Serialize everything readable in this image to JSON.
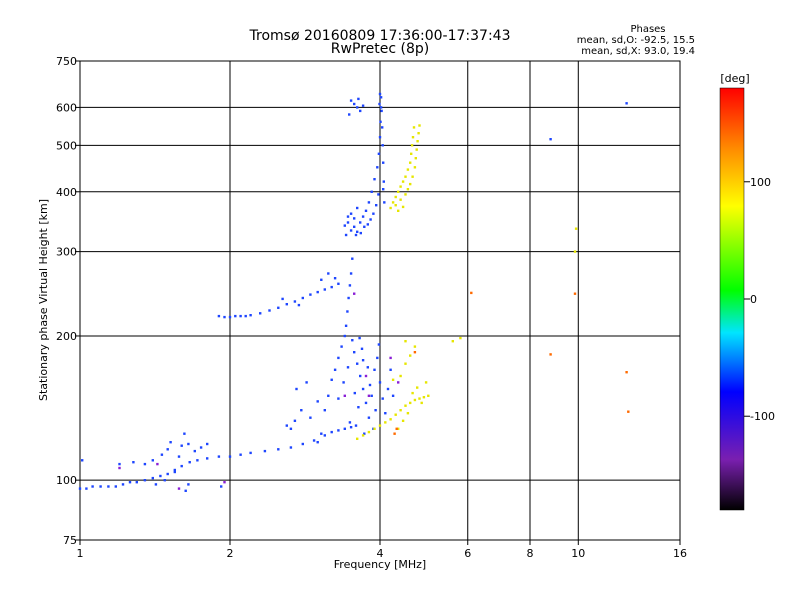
{
  "chart_data": {
    "type": "scatter",
    "title": "Tromsø 20160809 17:36:00-17:37:43",
    "subtitle": "RwPretec (8p)",
    "xlabel": "Frequency [MHz]",
    "ylabel": "Stationary phase Virtual Height [km]",
    "xscale": "log",
    "yscale": "log",
    "xlim": [
      1,
      16
    ],
    "ylim": [
      75,
      750
    ],
    "xticks": [
      1,
      2,
      4,
      6,
      8,
      10,
      16
    ],
    "xtick_labels": [
      "1",
      "2",
      "4",
      "6",
      "8",
      "10",
      "16"
    ],
    "yticks": [
      75,
      100,
      200,
      300,
      400,
      500,
      600,
      750
    ],
    "ytick_labels": [
      "75",
      "100",
      "200",
      "300",
      "400",
      "500",
      "600",
      "750"
    ],
    "grid": true,
    "phase_info": {
      "title": "Phases",
      "line_o": "mean, sd,O: -92.5, 15.5",
      "line_x": "mean, sd,X:  93.0, 19.4"
    },
    "colorbar": {
      "label": "[deg]",
      "range": [
        -180,
        180
      ],
      "ticks": [
        100,
        0,
        -100
      ],
      "tick_labels": [
        "100",
        "0",
        "-100"
      ]
    },
    "series": [
      {
        "phase": "O",
        "color": "#1e46ff",
        "points": [
          [
            1.0,
            96
          ],
          [
            1.03,
            96
          ],
          [
            1.06,
            97
          ],
          [
            1.1,
            97
          ],
          [
            1.14,
            97
          ],
          [
            1.18,
            97
          ],
          [
            1.22,
            98
          ],
          [
            1.26,
            99
          ],
          [
            1.3,
            99
          ],
          [
            1.35,
            100
          ],
          [
            1.4,
            101
          ],
          [
            1.45,
            102
          ],
          [
            1.5,
            103
          ],
          [
            1.55,
            105
          ],
          [
            1.6,
            107
          ],
          [
            1.66,
            109
          ],
          [
            1.72,
            110
          ],
          [
            1.8,
            111
          ],
          [
            1.9,
            112
          ],
          [
            2.0,
            112
          ],
          [
            2.1,
            113
          ],
          [
            2.2,
            114
          ],
          [
            2.35,
            115
          ],
          [
            2.5,
            116
          ],
          [
            2.65,
            117
          ],
          [
            2.8,
            119
          ],
          [
            2.95,
            121
          ],
          [
            3.1,
            124
          ],
          [
            3.2,
            126
          ],
          [
            3.3,
            127
          ],
          [
            3.4,
            128
          ],
          [
            3.5,
            129
          ],
          [
            1.01,
            110
          ],
          [
            1.2,
            108
          ],
          [
            1.28,
            109
          ],
          [
            1.35,
            108
          ],
          [
            1.4,
            110
          ],
          [
            1.46,
            113
          ],
          [
            1.5,
            116
          ],
          [
            1.52,
            120
          ],
          [
            1.55,
            104
          ],
          [
            1.58,
            112
          ],
          [
            1.6,
            118
          ],
          [
            1.62,
            125
          ],
          [
            1.65,
            119
          ],
          [
            1.7,
            115
          ],
          [
            1.75,
            117
          ],
          [
            1.8,
            119
          ],
          [
            1.42,
            98
          ],
          [
            1.48,
            100
          ],
          [
            1.63,
            95
          ],
          [
            1.65,
            98
          ],
          [
            1.92,
            97
          ],
          [
            1.9,
            220
          ],
          [
            1.95,
            219
          ],
          [
            2.0,
            219
          ],
          [
            2.05,
            220
          ],
          [
            2.1,
            220
          ],
          [
            2.15,
            220
          ],
          [
            2.2,
            221
          ],
          [
            2.3,
            223
          ],
          [
            2.4,
            226
          ],
          [
            2.5,
            229
          ],
          [
            2.6,
            233
          ],
          [
            2.7,
            236
          ],
          [
            2.8,
            240
          ],
          [
            2.9,
            244
          ],
          [
            3.0,
            247
          ],
          [
            3.1,
            250
          ],
          [
            3.2,
            253
          ],
          [
            3.3,
            257
          ],
          [
            2.55,
            239
          ],
          [
            2.75,
            232
          ],
          [
            3.05,
            262
          ],
          [
            3.15,
            270
          ],
          [
            3.25,
            264
          ],
          [
            2.6,
            130
          ],
          [
            2.65,
            128
          ],
          [
            2.7,
            133
          ],
          [
            2.78,
            140
          ],
          [
            2.9,
            135
          ],
          [
            3.0,
            146
          ],
          [
            2.72,
            155
          ],
          [
            2.85,
            160
          ],
          [
            3.0,
            120
          ],
          [
            3.05,
            125
          ],
          [
            3.1,
            140
          ],
          [
            3.15,
            150
          ],
          [
            3.2,
            162
          ],
          [
            3.25,
            170
          ],
          [
            3.3,
            180
          ],
          [
            3.35,
            190
          ],
          [
            3.4,
            200
          ],
          [
            3.42,
            210
          ],
          [
            3.44,
            225
          ],
          [
            3.46,
            240
          ],
          [
            3.48,
            255
          ],
          [
            3.5,
            270
          ],
          [
            3.52,
            290
          ],
          [
            3.55,
            185
          ],
          [
            3.6,
            175
          ],
          [
            3.65,
            165
          ],
          [
            3.7,
            155
          ],
          [
            3.75,
            145
          ],
          [
            3.8,
            135
          ],
          [
            3.85,
            150
          ],
          [
            3.9,
            170
          ],
          [
            3.95,
            180
          ],
          [
            4.0,
            160
          ],
          [
            3.58,
            130
          ],
          [
            3.62,
            142
          ],
          [
            3.68,
            188
          ],
          [
            3.72,
            125
          ],
          [
            3.78,
            172
          ],
          [
            3.82,
            158
          ],
          [
            3.88,
            128
          ],
          [
            3.92,
            140
          ],
          [
            3.98,
            192
          ],
          [
            4.05,
            148
          ],
          [
            4.1,
            138
          ],
          [
            4.15,
            155
          ],
          [
            4.2,
            170
          ],
          [
            4.25,
            150
          ],
          [
            3.3,
            148
          ],
          [
            3.38,
            160
          ],
          [
            3.45,
            172
          ],
          [
            3.48,
            132
          ],
          [
            3.52,
            196
          ],
          [
            3.56,
            152
          ],
          [
            3.64,
            198
          ],
          [
            3.7,
            178
          ],
          [
            3.4,
            340
          ],
          [
            3.45,
            345
          ],
          [
            3.5,
            332
          ],
          [
            3.55,
            338
          ],
          [
            3.6,
            330
          ],
          [
            3.65,
            345
          ],
          [
            3.7,
            355
          ],
          [
            3.75,
            365
          ],
          [
            3.8,
            380
          ],
          [
            3.85,
            400
          ],
          [
            3.9,
            425
          ],
          [
            3.95,
            450
          ],
          [
            3.98,
            480
          ],
          [
            4.0,
            520
          ],
          [
            4.01,
            560
          ],
          [
            4.02,
            600
          ],
          [
            4.02,
            630
          ],
          [
            4.0,
            640
          ],
          [
            3.99,
            610
          ],
          [
            4.03,
            590
          ],
          [
            4.04,
            545
          ],
          [
            4.05,
            500
          ],
          [
            4.06,
            460
          ],
          [
            4.07,
            420
          ],
          [
            4.08,
            380
          ],
          [
            4.06,
            405
          ],
          [
            3.97,
            395
          ],
          [
            3.93,
            375
          ],
          [
            3.88,
            360
          ],
          [
            3.83,
            350
          ],
          [
            3.78,
            342
          ],
          [
            3.72,
            338
          ],
          [
            3.45,
            355
          ],
          [
            3.5,
            360
          ],
          [
            3.55,
            352
          ],
          [
            3.6,
            370
          ],
          [
            3.42,
            325
          ],
          [
            3.58,
            325
          ],
          [
            3.66,
            328
          ],
          [
            3.5,
            620
          ],
          [
            3.55,
            610
          ],
          [
            3.6,
            600
          ],
          [
            3.65,
            590
          ],
          [
            3.7,
            605
          ],
          [
            3.47,
            580
          ],
          [
            3.62,
            625
          ],
          [
            8.8,
            515
          ],
          [
            12.5,
            612
          ]
        ]
      },
      {
        "phase": "X",
        "color": "#e6e600",
        "points": [
          [
            3.6,
            122
          ],
          [
            3.7,
            124
          ],
          [
            3.8,
            126
          ],
          [
            3.9,
            128
          ],
          [
            4.0,
            130
          ],
          [
            4.1,
            132
          ],
          [
            4.2,
            134
          ],
          [
            4.3,
            137
          ],
          [
            4.4,
            140
          ],
          [
            4.5,
            143
          ],
          [
            4.6,
            145
          ],
          [
            4.7,
            147
          ],
          [
            4.8,
            148
          ],
          [
            4.9,
            149
          ],
          [
            5.0,
            150
          ],
          [
            4.35,
            128
          ],
          [
            4.45,
            133
          ],
          [
            4.55,
            138
          ],
          [
            4.65,
            152
          ],
          [
            4.75,
            156
          ],
          [
            4.85,
            145
          ],
          [
            4.25,
            162
          ],
          [
            4.4,
            165
          ],
          [
            4.5,
            175
          ],
          [
            4.6,
            182
          ],
          [
            4.7,
            190
          ],
          [
            4.5,
            195
          ],
          [
            4.95,
            160
          ],
          [
            4.2,
            370
          ],
          [
            4.25,
            380
          ],
          [
            4.3,
            390
          ],
          [
            4.35,
            400
          ],
          [
            4.4,
            410
          ],
          [
            4.45,
            420
          ],
          [
            4.5,
            430
          ],
          [
            4.55,
            445
          ],
          [
            4.6,
            460
          ],
          [
            4.62,
            480
          ],
          [
            4.64,
            500
          ],
          [
            4.66,
            520
          ],
          [
            4.68,
            545
          ],
          [
            4.3,
            375
          ],
          [
            4.4,
            385
          ],
          [
            4.5,
            395
          ],
          [
            4.55,
            405
          ],
          [
            4.6,
            415
          ],
          [
            4.65,
            430
          ],
          [
            4.7,
            450
          ],
          [
            4.72,
            470
          ],
          [
            4.74,
            490
          ],
          [
            4.76,
            510
          ],
          [
            4.78,
            530
          ],
          [
            4.8,
            550
          ],
          [
            4.35,
            365
          ],
          [
            4.45,
            372
          ],
          [
            5.6,
            195
          ],
          [
            5.8,
            198
          ],
          [
            9.85,
            300
          ],
          [
            9.9,
            335
          ]
        ]
      },
      {
        "phase": "other",
        "color": "#ff6a00",
        "points": [
          [
            6.1,
            246
          ],
          [
            9.85,
            245
          ],
          [
            8.8,
            183
          ],
          [
            12.5,
            168
          ],
          [
            12.6,
            139
          ],
          [
            4.7,
            185
          ],
          [
            4.28,
            125
          ],
          [
            4.32,
            128
          ]
        ]
      },
      {
        "phase": "other",
        "color": "#8a1fd6",
        "points": [
          [
            1.2,
            106
          ],
          [
            1.43,
            108
          ],
          [
            1.58,
            96
          ],
          [
            1.95,
            99
          ],
          [
            3.4,
            150
          ],
          [
            3.75,
            165
          ],
          [
            4.2,
            180
          ],
          [
            4.35,
            160
          ],
          [
            3.55,
            245
          ],
          [
            3.8,
            150
          ]
        ]
      }
    ]
  }
}
